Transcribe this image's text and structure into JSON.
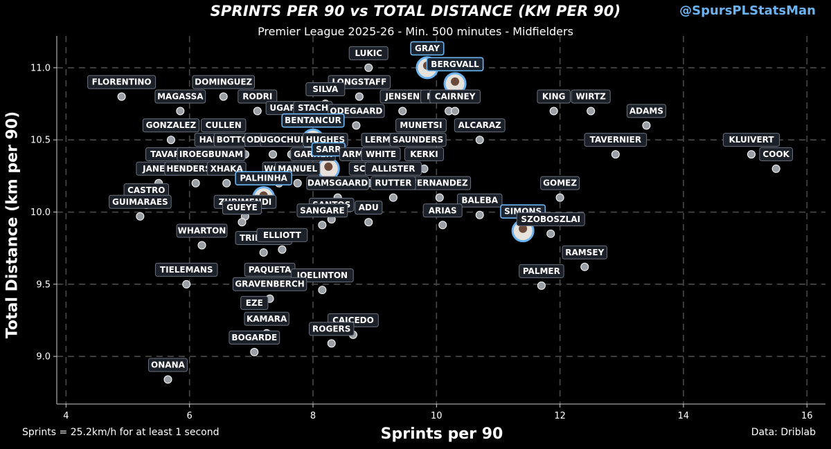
{
  "header": {
    "title": "SPRINTS PER 90 vs TOTAL DISTANCE (KM PER 90)",
    "subtitle": "Premier League 2025-26 - Min. 500 minutes - Midfielders",
    "handle": "@SpursPLStatsMan"
  },
  "footer": {
    "note": "Sprints = 25.2km/h for at least 1 second",
    "source": "Data: Driblab"
  },
  "colors": {
    "background": "#000000",
    "handle": "#6bb3f0",
    "highlight": "#6bb3f0",
    "point": "#9aa0a6"
  },
  "chart_data": {
    "type": "scatter",
    "xlabel": "Sprints per 90",
    "ylabel": "Total Distance (km per 90)",
    "xlim": [
      3.85,
      16.3
    ],
    "ylim": [
      8.67,
      11.22
    ],
    "xticks": [
      4,
      6,
      8,
      10,
      12,
      14,
      16
    ],
    "yticks": [
      9.0,
      9.5,
      10.0,
      10.5,
      11.0
    ],
    "grid": true,
    "points": [
      {
        "name": "LUKIC",
        "x": 8.9,
        "y": 11.0
      },
      {
        "name": "GRAY",
        "x": 9.85,
        "y": 11.0,
        "highlight": true
      },
      {
        "name": "BERGVALL",
        "x": 10.3,
        "y": 10.89,
        "highlight": true
      },
      {
        "name": "FLORENTINO",
        "x": 4.9,
        "y": 10.8
      },
      {
        "name": "DOMINGUEZ",
        "x": 6.55,
        "y": 10.8
      },
      {
        "name": "LONGSTAFF",
        "x": 8.75,
        "y": 10.8
      },
      {
        "name": "MAGASSA",
        "x": 5.85,
        "y": 10.7
      },
      {
        "name": "RODRI",
        "x": 7.1,
        "y": 10.7
      },
      {
        "name": "SILVA",
        "x": 8.2,
        "y": 10.75
      },
      {
        "name": "JENSEN",
        "x": 9.45,
        "y": 10.7
      },
      {
        "name": "MEJBRITT",
        "x": 10.2,
        "y": 10.7
      },
      {
        "name": "KING",
        "x": 11.9,
        "y": 10.7
      },
      {
        "name": "WIRTZ",
        "x": 12.5,
        "y": 10.7
      },
      {
        "name": "CAIRNEY",
        "x": 10.3,
        "y": 10.7
      },
      {
        "name": "UGARTE",
        "x": 7.6,
        "y": 10.62
      },
      {
        "name": "STACH",
        "x": 8.0,
        "y": 10.62
      },
      {
        "name": "ODEGAARD",
        "x": 8.7,
        "y": 10.6
      },
      {
        "name": "ADAMS",
        "x": 13.4,
        "y": 10.6
      },
      {
        "name": "GONZALEZ",
        "x": 5.7,
        "y": 10.5
      },
      {
        "name": "CULLEN",
        "x": 6.55,
        "y": 10.5
      },
      {
        "name": "BENTANCUR",
        "x": 8.0,
        "y": 10.5,
        "highlight": true
      },
      {
        "name": "MUNETSI",
        "x": 9.75,
        "y": 10.5
      },
      {
        "name": "ALCARAZ",
        "x": 10.7,
        "y": 10.5
      },
      {
        "name": "HALL",
        "x": 6.35,
        "y": 10.4
      },
      {
        "name": "BOTTOMLEY",
        "x": 6.9,
        "y": 10.4
      },
      {
        "name": "ODEGAARD",
        "x": 7.35,
        "y": 10.4
      },
      {
        "name": "UGOCHUKWU",
        "x": 7.65,
        "y": 10.4
      },
      {
        "name": "HUGHES",
        "x": 8.2,
        "y": 10.4
      },
      {
        "name": "LERMA",
        "x": 9.1,
        "y": 10.4
      },
      {
        "name": "SAUNDERS",
        "x": 9.7,
        "y": 10.4
      },
      {
        "name": "TAVERNIER",
        "x": 12.9,
        "y": 10.4
      },
      {
        "name": "KLUIVERT",
        "x": 15.1,
        "y": 10.4
      },
      {
        "name": "COOK",
        "x": 15.5,
        "y": 10.3
      },
      {
        "name": "TAVARES",
        "x": 5.7,
        "y": 10.3
      },
      {
        "name": "IROEGBUNAM",
        "x": 6.35,
        "y": 10.3
      },
      {
        "name": "GARNER",
        "x": 8.0,
        "y": 10.3
      },
      {
        "name": "SARR",
        "x": 8.25,
        "y": 10.3,
        "highlight": true
      },
      {
        "name": "ARMO",
        "x": 8.7,
        "y": 10.3
      },
      {
        "name": "WHITE",
        "x": 9.1,
        "y": 10.3
      },
      {
        "name": "KERKI",
        "x": 9.8,
        "y": 10.3
      },
      {
        "name": "JANELT",
        "x": 5.5,
        "y": 10.2
      },
      {
        "name": "HENDERSON",
        "x": 6.1,
        "y": 10.2
      },
      {
        "name": "XHAKA",
        "x": 6.6,
        "y": 10.2
      },
      {
        "name": "WOOD",
        "x": 7.45,
        "y": 10.2
      },
      {
        "name": "MANUEL",
        "x": 7.75,
        "y": 10.2
      },
      {
        "name": "SCOTT",
        "x": 8.9,
        "y": 10.2
      },
      {
        "name": "ALLISTER",
        "x": 9.3,
        "y": 10.2
      },
      {
        "name": "FERNANDEZ",
        "x": 10.05,
        "y": 10.1
      },
      {
        "name": "GOMEZ",
        "x": 12.0,
        "y": 10.1
      },
      {
        "name": "PALHINHA",
        "x": 7.2,
        "y": 10.1,
        "highlight": true
      },
      {
        "name": "DAMSGAARD",
        "x": 8.4,
        "y": 10.1
      },
      {
        "name": "RUTTER",
        "x": 9.3,
        "y": 10.1
      },
      {
        "name": "CASTRO",
        "x": 5.3,
        "y": 10.05
      },
      {
        "name": "BALEBA",
        "x": 10.7,
        "y": 9.98
      },
      {
        "name": "GUIMARAES",
        "x": 5.2,
        "y": 9.97
      },
      {
        "name": "ZUBIMENDI",
        "x": 6.9,
        "y": 9.97
      },
      {
        "name": "SANTOS",
        "x": 8.3,
        "y": 9.95
      },
      {
        "name": "SANGARE",
        "x": 8.15,
        "y": 9.91
      },
      {
        "name": "ADU",
        "x": 8.9,
        "y": 9.93
      },
      {
        "name": "ARIAS",
        "x": 10.1,
        "y": 9.91
      },
      {
        "name": "GUEYE",
        "x": 6.85,
        "y": 9.93
      },
      {
        "name": "SIMONS",
        "x": 11.4,
        "y": 9.87,
        "highlight": true
      },
      {
        "name": "SZOBOSZLAI",
        "x": 11.85,
        "y": 9.85
      },
      {
        "name": "WHARTON",
        "x": 6.2,
        "y": 9.77
      },
      {
        "name": "TRINDADE",
        "x": 7.2,
        "y": 9.72
      },
      {
        "name": "ELLIOTT",
        "x": 7.5,
        "y": 9.74
      },
      {
        "name": "RAMSEY",
        "x": 12.4,
        "y": 9.62
      },
      {
        "name": "TIELEMANS",
        "x": 5.95,
        "y": 9.5
      },
      {
        "name": "PAQUETA",
        "x": 7.3,
        "y": 9.5
      },
      {
        "name": "JOELINTON",
        "x": 8.15,
        "y": 9.46
      },
      {
        "name": "PALMER",
        "x": 11.7,
        "y": 9.49
      },
      {
        "name": "GRAVENBERCH",
        "x": 7.3,
        "y": 9.4
      },
      {
        "name": "EZE",
        "x": 7.05,
        "y": 9.27
      },
      {
        "name": "KAMARA",
        "x": 7.25,
        "y": 9.16
      },
      {
        "name": "CAICEDO",
        "x": 8.65,
        "y": 9.15
      },
      {
        "name": "ROGERS",
        "x": 8.3,
        "y": 9.09
      },
      {
        "name": "BOGARDE",
        "x": 7.05,
        "y": 9.03
      },
      {
        "name": "ONANA",
        "x": 5.65,
        "y": 8.84
      }
    ]
  }
}
